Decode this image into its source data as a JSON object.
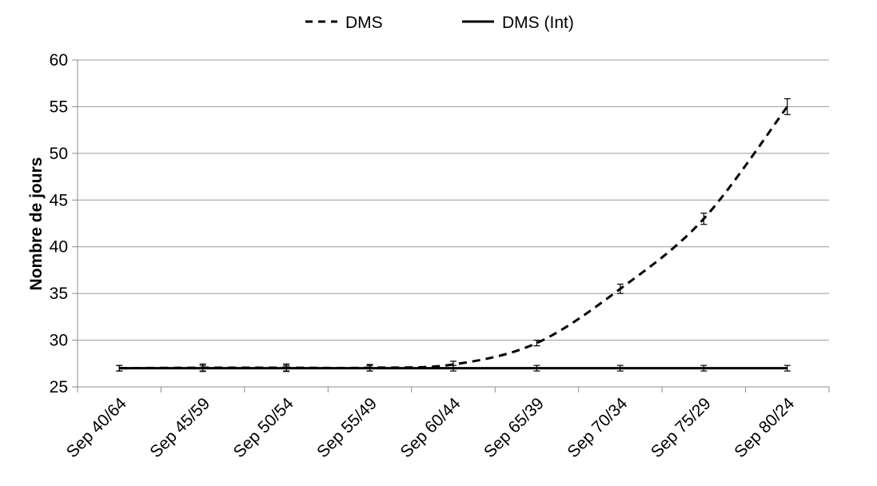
{
  "chart_data": {
    "type": "line",
    "title": "",
    "xlabel": "",
    "ylabel": "Nombre de jours",
    "categories": [
      "Sep 40/64",
      "Sep 45/59",
      "Sep 50/54",
      "Sep 55/49",
      "Sep 60/44",
      "Sep 65/39",
      "Sep 70/34",
      "Sep 75/29",
      "Sep 80/24"
    ],
    "ylim": [
      25,
      60
    ],
    "yticks": [
      "25",
      "30",
      "35",
      "40",
      "45",
      "50",
      "55",
      "60"
    ],
    "grid": true,
    "legend_position": "top-center",
    "series": [
      {
        "name": "DMS",
        "style": "dashed",
        "color": "#000000",
        "values": [
          27.0,
          27.05,
          27.05,
          27.05,
          27.4,
          29.7,
          35.5,
          43.0,
          55.0
        ],
        "error": [
          0.3,
          0.4,
          0.4,
          0.35,
          0.35,
          0.3,
          0.5,
          0.6,
          0.85
        ]
      },
      {
        "name": "DMS (Int)",
        "style": "solid",
        "color": "#000000",
        "values": [
          27.0,
          27.0,
          27.0,
          27.0,
          27.0,
          27.0,
          27.0,
          27.0,
          27.0
        ],
        "error": [
          0.3,
          0.3,
          0.3,
          0.3,
          0.3,
          0.3,
          0.3,
          0.3,
          0.3
        ]
      }
    ]
  }
}
